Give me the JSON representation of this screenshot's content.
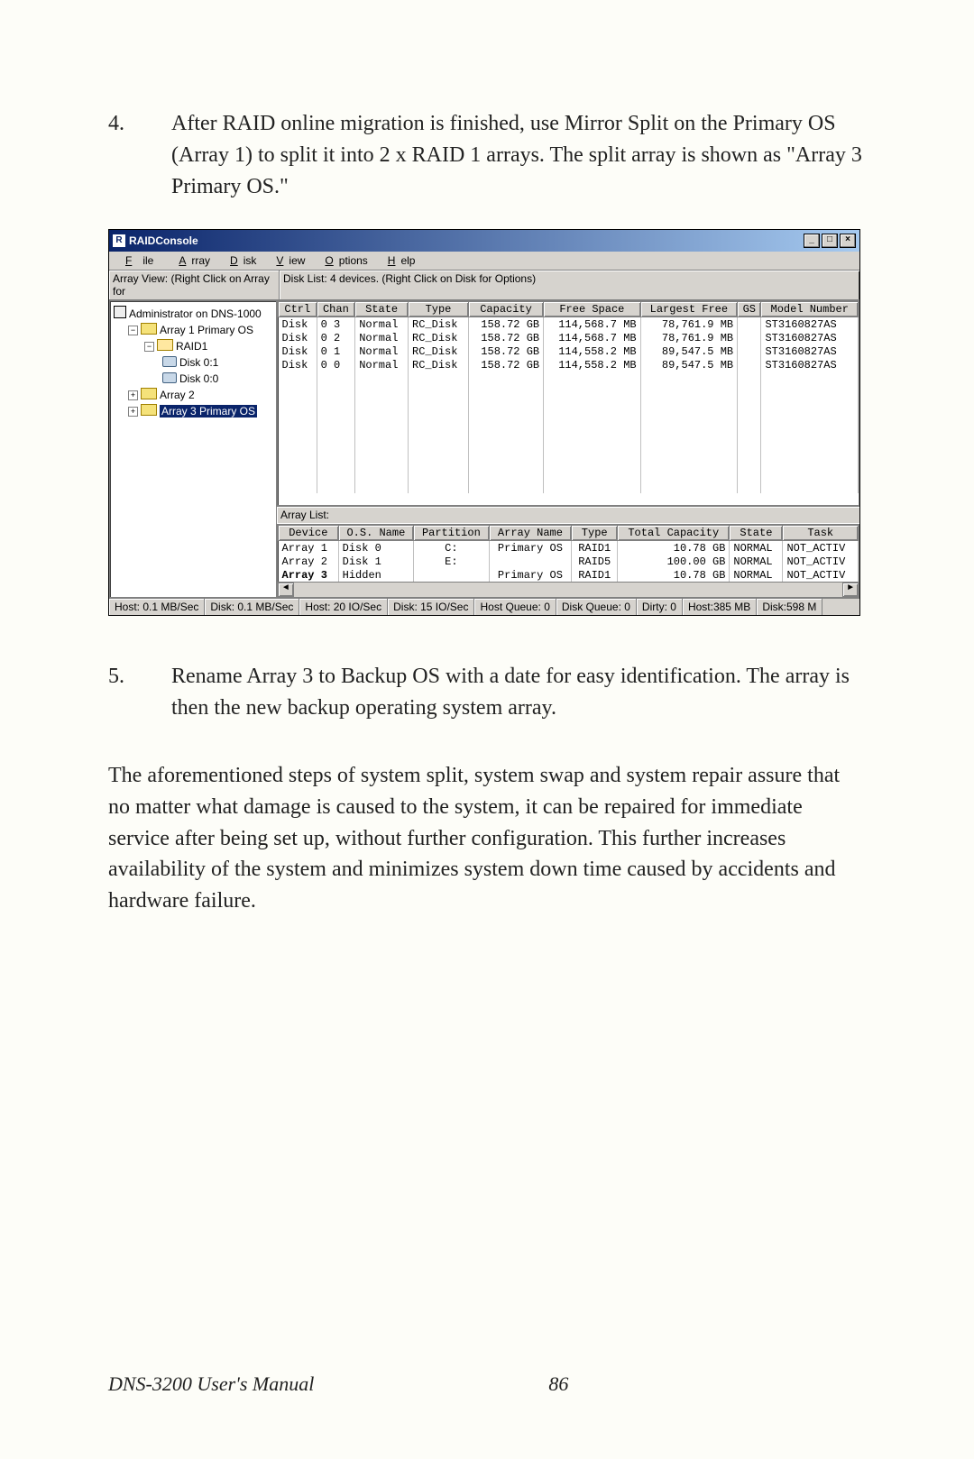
{
  "step4": {
    "num": "4.",
    "text": "After RAID online migration is finished, use Mirror Split on the Primary OS (Array 1) to split it into 2 x RAID 1 arrays. The split array is shown as \"Array 3 Primary OS.\""
  },
  "step5": {
    "num": "5.",
    "text": "Rename Array 3 to Backup OS with a date for easy identification. The array is then the new backup operating system array."
  },
  "paragraph": "The aforementioned steps of system split, system swap and system repair assure that no matter what damage is caused to the system, it can be repaired for immediate service after being set up, without further configuration. This further increases availability of the system and minimizes system down time caused by accidents and hardware failure.",
  "footer": {
    "left": "DNS-3200 User's Manual",
    "page": "86"
  },
  "win": {
    "title": "RAIDConsole",
    "menus": [
      "File",
      "Array",
      "Disk",
      "View",
      "Options",
      "Help"
    ],
    "leftLabel": "Array View: (Right Click on Array for",
    "rightLabel": "Disk List: 4 devices.  (Right Click on Disk for Options)",
    "tree": {
      "root": "Administrator on DNS-1000",
      "a1": "Array 1  Primary OS",
      "raid": "RAID1",
      "d01": "Disk 0:1",
      "d00": "Disk 0:0",
      "a2": "Array 2",
      "a3": "Array 3  Primary OS"
    },
    "diskCols": [
      "Ctrl",
      "Chan",
      "State",
      "Type",
      "Capacity",
      "Free Space",
      "Largest Free",
      "GS",
      "Model Number"
    ],
    "diskRows": [
      [
        "Disk",
        "0 3",
        "Normal",
        "RC_Disk",
        "158.72 GB",
        "114,568.7 MB",
        "78,761.9 MB",
        "",
        "ST3160827AS"
      ],
      [
        "Disk",
        "0 2",
        "Normal",
        "RC_Disk",
        "158.72 GB",
        "114,568.7 MB",
        "78,761.9 MB",
        "",
        "ST3160827AS"
      ],
      [
        "Disk",
        "0 1",
        "Normal",
        "RC_Disk",
        "158.72 GB",
        "114,558.2 MB",
        "89,547.5 MB",
        "",
        "ST3160827AS"
      ],
      [
        "Disk",
        "0 0",
        "Normal",
        "RC_Disk",
        "158.72 GB",
        "114,558.2 MB",
        "89,547.5 MB",
        "",
        "ST3160827AS"
      ]
    ],
    "arrayLabel": "Array List:",
    "arrayCols": [
      "Device",
      "O.S. Name",
      "Partition",
      "Array Name",
      "Type",
      "Total Capacity",
      "State",
      "Task"
    ],
    "arrayRows": [
      {
        "dev": "Array 1",
        "os": "Disk 0",
        "part": "C:",
        "name": "Primary OS",
        "type": "RAID1",
        "cap": "10.78 GB",
        "state": "NORMAL",
        "task": "NOT_ACTIV",
        "bold": false
      },
      {
        "dev": "Array 2",
        "os": "Disk 1",
        "part": "E:",
        "name": "",
        "type": "RAID5",
        "cap": "100.00 GB",
        "state": "NORMAL",
        "task": "NOT_ACTIV",
        "bold": false
      },
      {
        "dev": "Array 3",
        "os": "Hidden",
        "part": "",
        "name": "Primary OS",
        "type": "RAID1",
        "cap": "10.78 GB",
        "state": "NORMAL",
        "task": "NOT_ACTIV",
        "bold": true
      }
    ],
    "status": [
      "Host: 0.1 MB/Sec",
      "Disk: 0.1 MB/Sec",
      "Host: 20 IO/Sec",
      "Disk: 15 IO/Sec",
      "Host Queue: 0",
      "Disk Queue: 0",
      "Dirty: 0",
      "Host:385 MB",
      "Disk:598 M"
    ]
  }
}
